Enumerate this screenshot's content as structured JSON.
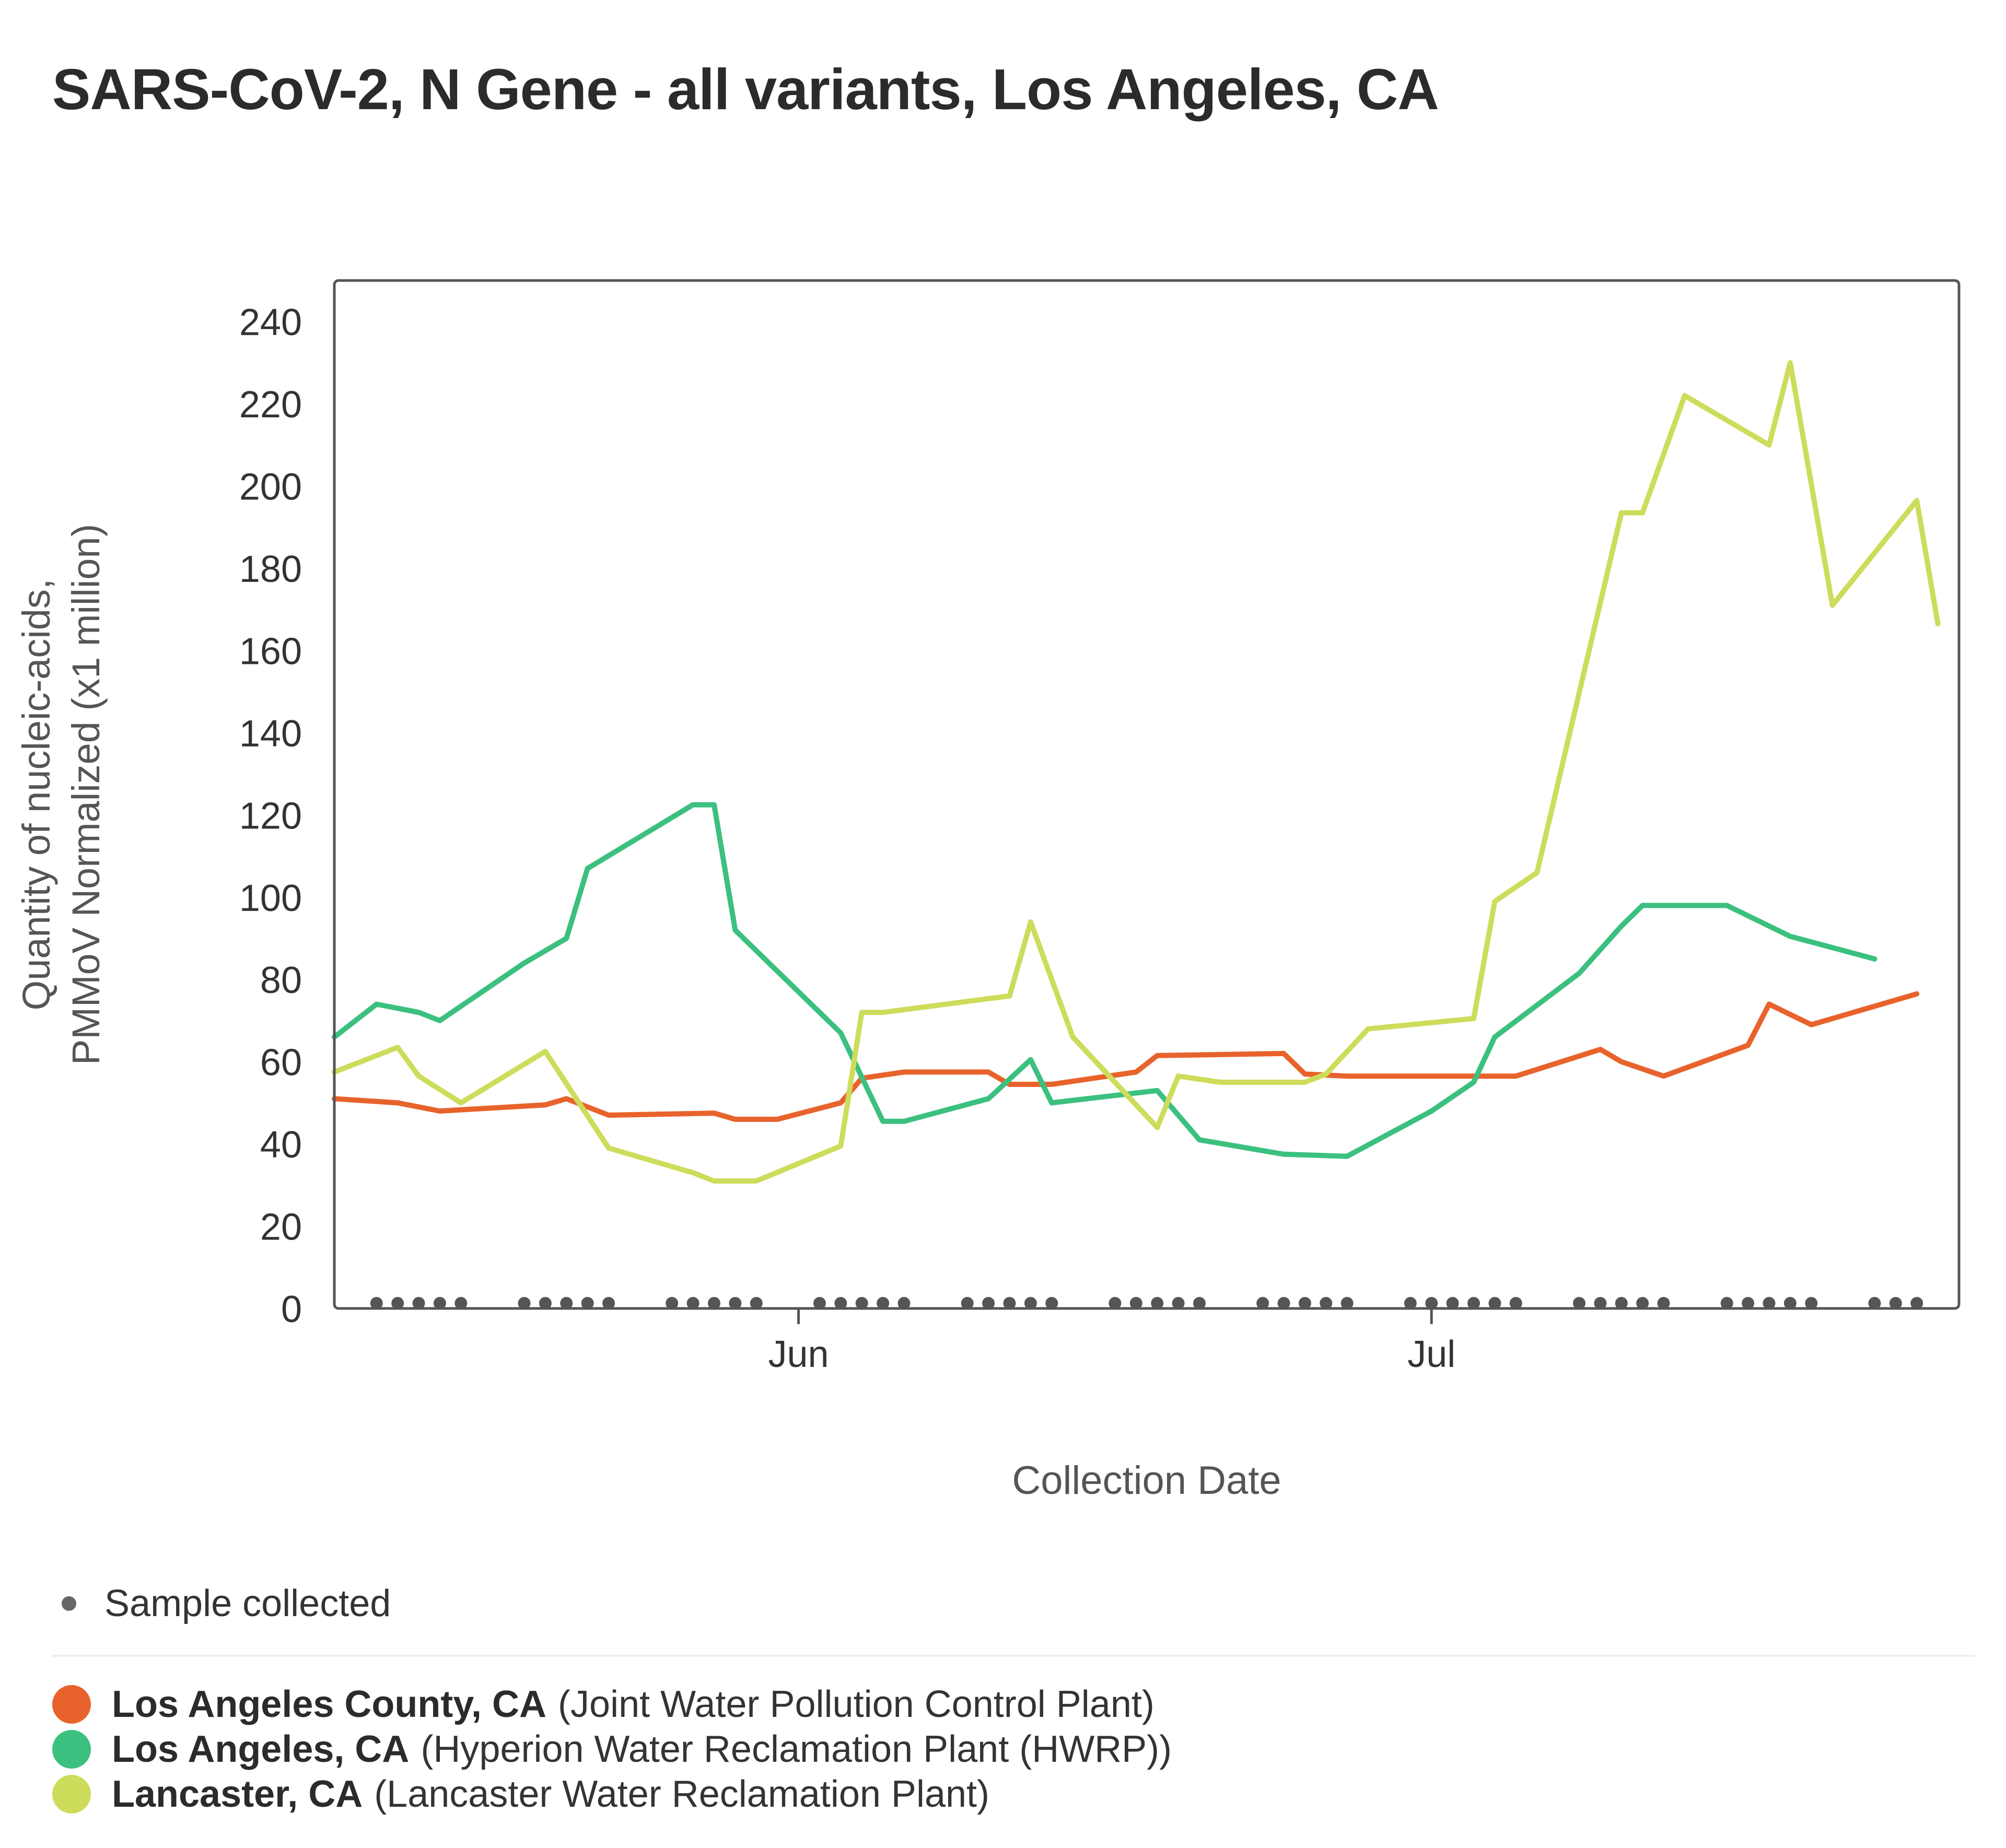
{
  "chart_data": {
    "type": "line",
    "title": "SARS-CoV-2, N Gene - all variants, Los Angeles, CA",
    "xlabel": "Collection Date",
    "ylabel_lines": [
      "Quantity of nucleic-acids,",
      "PMMoV Normalized (x1 million)"
    ],
    "ylim": [
      0,
      250
    ],
    "xlim": [
      "2022-05-10",
      "2022-07-26"
    ],
    "yticks": [
      0,
      20,
      40,
      60,
      80,
      100,
      120,
      140,
      160,
      180,
      200,
      220,
      240
    ],
    "xticks": [
      {
        "date": "2022-06-01",
        "label": "Jun"
      },
      {
        "date": "2022-07-01",
        "label": "Jul"
      }
    ],
    "grid": false,
    "legend_position": "bottom",
    "sample_collected_label": "Sample collected",
    "sample_dates": [
      "2022-05-12",
      "2022-05-13",
      "2022-05-14",
      "2022-05-15",
      "2022-05-16",
      "2022-05-19",
      "2022-05-20",
      "2022-05-21",
      "2022-05-22",
      "2022-05-23",
      "2022-05-26",
      "2022-05-27",
      "2022-05-28",
      "2022-05-29",
      "2022-05-30",
      "2022-06-02",
      "2022-06-03",
      "2022-06-04",
      "2022-06-05",
      "2022-06-06",
      "2022-06-09",
      "2022-06-10",
      "2022-06-11",
      "2022-06-12",
      "2022-06-13",
      "2022-06-16",
      "2022-06-17",
      "2022-06-18",
      "2022-06-19",
      "2022-06-20",
      "2022-06-23",
      "2022-06-24",
      "2022-06-25",
      "2022-06-26",
      "2022-06-27",
      "2022-06-30",
      "2022-07-01",
      "2022-07-02",
      "2022-07-03",
      "2022-07-04",
      "2022-07-05",
      "2022-07-08",
      "2022-07-09",
      "2022-07-10",
      "2022-07-11",
      "2022-07-12",
      "2022-07-15",
      "2022-07-16",
      "2022-07-17",
      "2022-07-18",
      "2022-07-19",
      "2022-07-22",
      "2022-07-23",
      "2022-07-24"
    ],
    "series": [
      {
        "name": "Los Angeles County, CA",
        "plant": "(Joint Water Pollution Control Plant)",
        "color": "#e8632c",
        "points": [
          [
            "2022-05-10",
            51
          ],
          [
            "2022-05-13",
            50
          ],
          [
            "2022-05-15",
            48
          ],
          [
            "2022-05-20",
            49.5
          ],
          [
            "2022-05-21",
            51
          ],
          [
            "2022-05-23",
            47
          ],
          [
            "2022-05-28",
            47.5
          ],
          [
            "2022-05-29",
            46
          ],
          [
            "2022-05-31",
            46
          ],
          [
            "2022-06-03",
            50
          ],
          [
            "2022-06-04",
            56
          ],
          [
            "2022-06-06",
            57.5
          ],
          [
            "2022-06-10",
            57.5
          ],
          [
            "2022-06-11",
            54.5
          ],
          [
            "2022-06-13",
            54.5
          ],
          [
            "2022-06-17",
            57.5
          ],
          [
            "2022-06-18",
            61.5
          ],
          [
            "2022-06-24",
            62
          ],
          [
            "2022-06-25",
            57
          ],
          [
            "2022-06-27",
            56.5
          ],
          [
            "2022-07-03",
            56.5
          ],
          [
            "2022-07-05",
            56.5
          ],
          [
            "2022-07-09",
            63
          ],
          [
            "2022-07-10",
            60
          ],
          [
            "2022-07-12",
            56.5
          ],
          [
            "2022-07-16",
            64
          ],
          [
            "2022-07-17",
            74
          ],
          [
            "2022-07-19",
            69
          ],
          [
            "2022-07-24",
            76.5
          ]
        ]
      },
      {
        "name": "Los Angeles, CA",
        "plant": "(Hyperion Water Reclamation Plant (HWRP))",
        "color": "#3cc07f",
        "points": [
          [
            "2022-05-10",
            66
          ],
          [
            "2022-05-12",
            74
          ],
          [
            "2022-05-14",
            72
          ],
          [
            "2022-05-15",
            70
          ],
          [
            "2022-05-19",
            84
          ],
          [
            "2022-05-21",
            90
          ],
          [
            "2022-05-22",
            107
          ],
          [
            "2022-05-27",
            122.5
          ],
          [
            "2022-05-28",
            122.5
          ],
          [
            "2022-05-29",
            92
          ],
          [
            "2022-06-03",
            67
          ],
          [
            "2022-06-05",
            45.5
          ],
          [
            "2022-06-06",
            45.5
          ],
          [
            "2022-06-10",
            51
          ],
          [
            "2022-06-12",
            60.5
          ],
          [
            "2022-06-13",
            50
          ],
          [
            "2022-06-18",
            53
          ],
          [
            "2022-06-20",
            41
          ],
          [
            "2022-06-24",
            37.5
          ],
          [
            "2022-06-27",
            37
          ],
          [
            "2022-07-01",
            48
          ],
          [
            "2022-07-03",
            55
          ],
          [
            "2022-07-04",
            66
          ],
          [
            "2022-07-08",
            81.5
          ],
          [
            "2022-07-10",
            93
          ],
          [
            "2022-07-11",
            98
          ],
          [
            "2022-07-15",
            98
          ],
          [
            "2022-07-18",
            90.5
          ],
          [
            "2022-07-22",
            85
          ]
        ]
      },
      {
        "name": "Lancaster, CA",
        "plant": "(Lancaster Water Reclamation Plant)",
        "color": "#cddc5a",
        "points": [
          [
            "2022-05-10",
            57.5
          ],
          [
            "2022-05-13",
            63.5
          ],
          [
            "2022-05-14",
            56.5
          ],
          [
            "2022-05-16",
            50
          ],
          [
            "2022-05-20",
            62.5
          ],
          [
            "2022-05-23",
            39
          ],
          [
            "2022-05-27",
            33
          ],
          [
            "2022-05-28",
            31
          ],
          [
            "2022-05-30",
            31
          ],
          [
            "2022-06-03",
            39.5
          ],
          [
            "2022-06-04",
            72
          ],
          [
            "2022-06-05",
            72
          ],
          [
            "2022-06-11",
            76
          ],
          [
            "2022-06-12",
            94
          ],
          [
            "2022-06-14",
            66
          ],
          [
            "2022-06-18",
            44
          ],
          [
            "2022-06-19",
            56.5
          ],
          [
            "2022-06-21",
            55
          ],
          [
            "2022-06-25",
            55
          ],
          [
            "2022-06-26",
            57
          ],
          [
            "2022-06-28",
            68
          ],
          [
            "2022-07-03",
            70.5
          ],
          [
            "2022-07-04",
            99
          ],
          [
            "2022-07-06",
            106
          ],
          [
            "2022-07-10",
            193.5
          ],
          [
            "2022-07-11",
            193.5
          ],
          [
            "2022-07-13",
            222
          ],
          [
            "2022-07-17",
            210
          ],
          [
            "2022-07-18",
            230
          ],
          [
            "2022-07-20",
            171
          ],
          [
            "2022-07-24",
            196.5
          ],
          [
            "2022-07-25",
            166.5
          ]
        ]
      }
    ]
  }
}
